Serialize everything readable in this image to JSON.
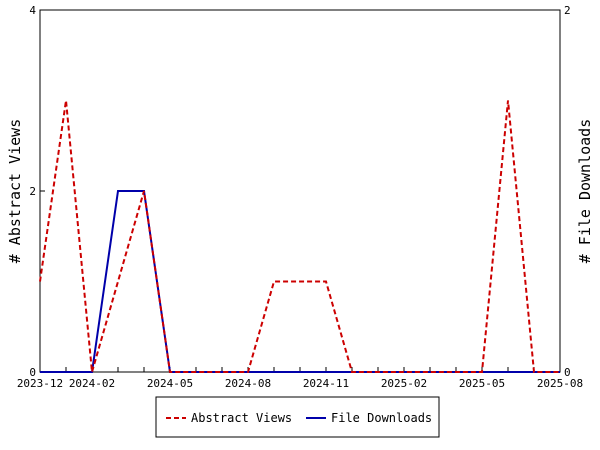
{
  "chart_data": {
    "type": "line",
    "x_tick_labels": [
      "2023-12",
      "2024-02",
      "2024-05",
      "2024-08",
      "2024-11",
      "2025-02",
      "2025-05",
      "2025-08"
    ],
    "x_months": [
      "2023-12",
      "2024-01",
      "2024-02",
      "2024-03",
      "2024-04",
      "2024-05",
      "2024-06",
      "2024-07",
      "2024-08",
      "2024-09",
      "2024-10",
      "2024-11",
      "2024-12",
      "2025-01",
      "2025-02",
      "2025-03",
      "2025-04",
      "2025-05",
      "2025-06",
      "2025-07",
      "2025-08"
    ],
    "y_left": {
      "label": "# Abstract Views",
      "range": [
        0,
        4
      ],
      "ticks": [
        0,
        2,
        4
      ]
    },
    "y_right": {
      "label": "# File Downloads",
      "range": [
        0,
        2
      ],
      "ticks": [
        0,
        2
      ]
    },
    "series": [
      {
        "name": "Abstract Views",
        "axis": "left",
        "color": "#cc0000",
        "style": "dashed",
        "values": [
          1,
          3,
          0,
          1,
          2,
          0,
          0,
          0,
          0,
          1,
          1,
          1,
          0,
          0,
          0,
          0,
          0,
          0,
          3,
          0,
          0
        ]
      },
      {
        "name": "File Downloads",
        "axis": "right",
        "color": "#0000aa",
        "style": "solid",
        "values": [
          0,
          0,
          0,
          1,
          1,
          0,
          0,
          0,
          0,
          0,
          0,
          0,
          0,
          0,
          0,
          0,
          0,
          0,
          0,
          0,
          0
        ]
      }
    ],
    "legend_position": "bottom",
    "grid": false
  }
}
